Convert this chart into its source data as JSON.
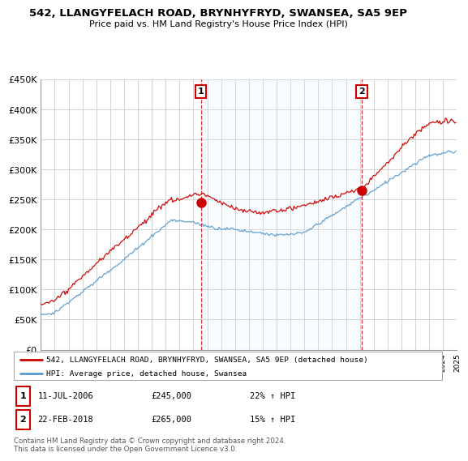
{
  "title": "542, LLANGYFELACH ROAD, BRYNHYFRYD, SWANSEA, SA5 9EP",
  "subtitle": "Price paid vs. HM Land Registry's House Price Index (HPI)",
  "red_label": "542, LLANGYFELACH ROAD, BRYNHYFRYD, SWANSEA, SA5 9EP (detached house)",
  "blue_label": "HPI: Average price, detached house, Swansea",
  "sale1_date": "11-JUL-2006",
  "sale1_price": 245000,
  "sale1_hpi": "22% ↑ HPI",
  "sale2_date": "22-FEB-2018",
  "sale2_price": 265000,
  "sale2_hpi": "15% ↑ HPI",
  "footnote": "Contains HM Land Registry data © Crown copyright and database right 2024.\nThis data is licensed under the Open Government Licence v3.0.",
  "red_color": "#cc0000",
  "blue_color": "#5599cc",
  "shade_color": "#ddeeff",
  "ylim": [
    0,
    450000
  ],
  "yticks": [
    0,
    50000,
    100000,
    150000,
    200000,
    250000,
    300000,
    350000,
    400000,
    450000
  ],
  "ytick_labels": [
    "£0",
    "£50K",
    "£100K",
    "£150K",
    "£200K",
    "£250K",
    "£300K",
    "£350K",
    "£400K",
    "£450K"
  ],
  "start_year": 1995,
  "end_year": 2025,
  "sale1_year": 2006.53,
  "sale2_year": 2018.13
}
